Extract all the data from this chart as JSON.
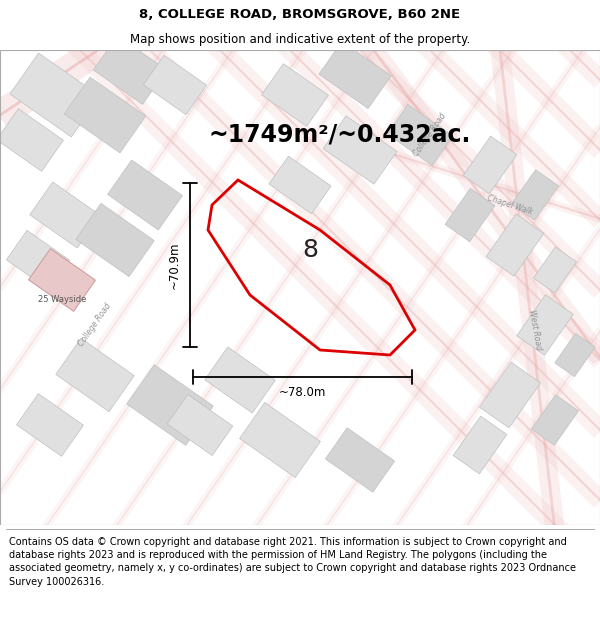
{
  "title_line1": "8, COLLEGE ROAD, BROMSGROVE, B60 2NE",
  "title_line2": "Map shows position and indicative extent of the property.",
  "area_text": "~1749m²/~0.432ac.",
  "property_number": "8",
  "dim_vertical": "~70.9m",
  "dim_horizontal": "~78.0m",
  "footer_text": "Contains OS data © Crown copyright and database right 2021. This information is subject to Crown copyright and database rights 2023 and is reproduced with the permission of HM Land Registry. The polygons (including the associated geometry, namely x, y co-ordinates) are subject to Crown copyright and database rights 2023 Ordnance Survey 100026316.",
  "red_polygon_color": "#dd0000",
  "title_fontsize": 9.5,
  "subtitle_fontsize": 8.5,
  "area_fontsize": 17,
  "footer_fontsize": 7.0,
  "map_bg": "#ffffff",
  "street_line_color": "#f0c8c8",
  "street_outline_color": "#e8a8a8",
  "block_color_light": "#e0e0e0",
  "block_color_mid": "#d4d4d4",
  "pink_block_color": "#e8c8c8",
  "label_color": "#888888"
}
